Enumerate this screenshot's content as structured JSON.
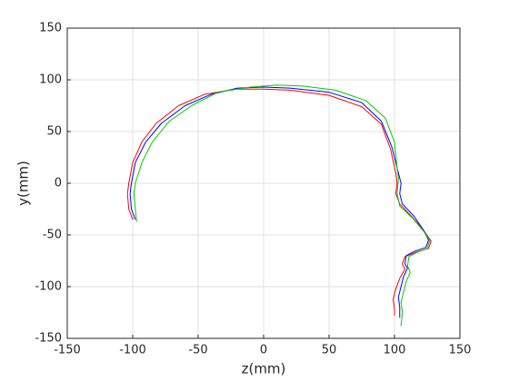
{
  "chart_data": {
    "type": "line",
    "xlabel": "z(mm)",
    "ylabel": "y(mm)",
    "xlim": [
      -150,
      150
    ],
    "ylim": [
      -150,
      150
    ],
    "xticks": [
      -150,
      -100,
      -50,
      0,
      50,
      100,
      150
    ],
    "yticks": [
      -150,
      -100,
      -50,
      0,
      50,
      100,
      150
    ],
    "grid": true,
    "series": [
      {
        "color": "#ff0000",
        "x": [
          -100,
          -103,
          -104,
          -103,
          -100,
          -93,
          -82,
          -65,
          -45,
          -22,
          0,
          20,
          50,
          75,
          90,
          97,
          101,
          102,
          101,
          104,
          113,
          122,
          128,
          126,
          116,
          108,
          106,
          108,
          104,
          101,
          99,
          100,
          100
        ],
        "values": [
          -35,
          -25,
          -10,
          0,
          20,
          40,
          58,
          75,
          86,
          91,
          91,
          90,
          85,
          74,
          57,
          33,
          10,
          0,
          -10,
          -20,
          -32,
          -45,
          -56,
          -63,
          -67,
          -71,
          -78,
          -83,
          -92,
          -102,
          -112,
          -122,
          -128
        ]
      },
      {
        "color": "#0000ff",
        "x": [
          -98,
          -101,
          -102,
          -101,
          -98,
          -90,
          -78,
          -60,
          -40,
          -20,
          0,
          20,
          50,
          75,
          90,
          98,
          103,
          105,
          104,
          106,
          115,
          122,
          126,
          124,
          115,
          109,
          108,
          110,
          107,
          105,
          103,
          104,
          104
        ],
        "values": [
          -35,
          -25,
          -10,
          0,
          20,
          40,
          58,
          75,
          86,
          92,
          93,
          92,
          88,
          78,
          60,
          35,
          10,
          0,
          -10,
          -20,
          -32,
          -45,
          -55,
          -62,
          -66,
          -70,
          -78,
          -82,
          -90,
          -100,
          -110,
          -120,
          -130
        ]
      },
      {
        "color": "#00cc00",
        "x": [
          -97,
          -98,
          -99,
          -98,
          -93,
          -85,
          -72,
          -55,
          -35,
          -10,
          10,
          30,
          55,
          78,
          93,
          100,
          102,
          103,
          102,
          104,
          114,
          122,
          127,
          125,
          117,
          111,
          110,
          112,
          109,
          107,
          105,
          106,
          105
        ],
        "values": [
          -37,
          -25,
          -10,
          0,
          20,
          40,
          60,
          75,
          88,
          93,
          95,
          94,
          90,
          80,
          63,
          40,
          15,
          5,
          -10,
          -22,
          -34,
          -46,
          -55,
          -63,
          -67,
          -71,
          -80,
          -86,
          -95,
          -105,
          -115,
          -125,
          -138
        ]
      }
    ]
  }
}
